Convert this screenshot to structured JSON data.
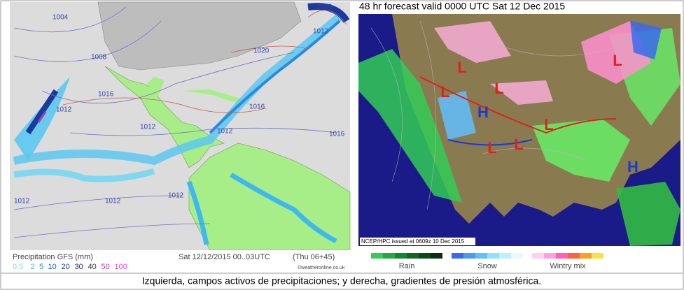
{
  "left_map": {
    "isobar_labels": [
      "1004",
      "1008",
      "1016",
      "1012",
      "1012",
      "1020",
      "1016",
      "1012",
      "1016",
      "1012",
      "1012",
      "1016",
      "1012",
      "1012"
    ],
    "legend": {
      "title": "Precipitation GFS (mm)",
      "scale": [
        {
          "label": "0.5",
          "color": "#7fd8f0"
        },
        {
          "label": "2",
          "color": "#3fb8f0"
        },
        {
          "label": "5",
          "color": "#2a8ae0"
        },
        {
          "label": "10",
          "color": "#1a5ad0"
        },
        {
          "label": "20",
          "color": "#1a3aa0"
        },
        {
          "label": "30",
          "color": "#222266"
        },
        {
          "label": "40",
          "color": "#333333"
        },
        {
          "label": "50",
          "color": "#b03ab0"
        },
        {
          "label": "100",
          "color": "#e040e0"
        }
      ],
      "valid": "Sat 12/12/2015 00..03UTC",
      "run": "(Thu 06+45)",
      "credit": "©weatheronline.co.uk"
    }
  },
  "right_map": {
    "title": "48 hr forecast valid 0000 UTC Sat 12 Dec 2015",
    "issued": "NCEP/HPC issued at 0609z  10 Dec 2015",
    "pressure_centers": [
      {
        "label": "L",
        "color": "#e02020"
      },
      {
        "label": "L",
        "color": "#e02020"
      },
      {
        "label": "L",
        "color": "#e02020"
      },
      {
        "label": "L",
        "color": "#e02020"
      },
      {
        "label": "L",
        "color": "#e02020"
      },
      {
        "label": "L",
        "color": "#e02020"
      },
      {
        "label": "L",
        "color": "#e02020"
      },
      {
        "label": "H",
        "color": "#1a3ad0"
      },
      {
        "label": "H",
        "color": "#1a3ad0"
      }
    ],
    "legend": [
      "Rain",
      "Snow",
      "Wintry mix"
    ]
  },
  "caption": "Izquierda, campos activos de precipitaciones; y derecha, gradientes de presión atmosférica."
}
